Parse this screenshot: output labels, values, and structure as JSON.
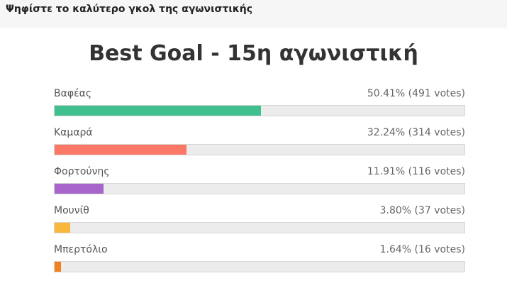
{
  "header": {
    "title": "Ψηφίστε το καλύτερο γκολ της αγωνιστικής"
  },
  "poll": {
    "title": "Best Goal - 15η αγωνιστική",
    "options": [
      {
        "name": "Βαφέας",
        "percent": 50.41,
        "label": "50.41% (491 votes)",
        "color": "#40bf8f"
      },
      {
        "name": "Καμαρά",
        "percent": 32.24,
        "label": "32.24% (314 votes)",
        "color": "#fb7866"
      },
      {
        "name": "Φορτούνης",
        "percent": 11.91,
        "label": "11.91% (116 votes)",
        "color": "#a765cc"
      },
      {
        "name": "Μουνίθ",
        "percent": 3.8,
        "label": "3.80% (37 votes)",
        "color": "#f9b73b"
      },
      {
        "name": "Μπερτόλιο",
        "percent": 1.64,
        "label": "1.64% (16 votes)",
        "color": "#f47f1e"
      }
    ]
  }
}
